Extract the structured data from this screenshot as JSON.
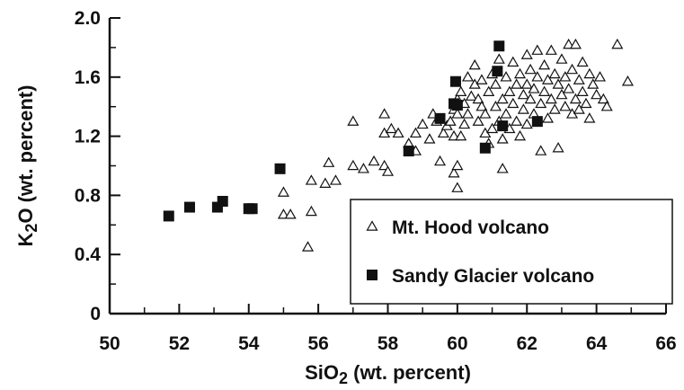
{
  "chart_data": {
    "type": "scatter",
    "xlabel": "SiO2 (wt. percent)",
    "ylabel": "K2O (wt. percent)",
    "xlim": [
      50,
      66
    ],
    "ylim": [
      0,
      2.0
    ],
    "x_ticks": [
      "50",
      "52",
      "54",
      "56",
      "58",
      "60",
      "62",
      "64",
      "66"
    ],
    "y_ticks": [
      "0",
      "0.4",
      "0.8",
      "1.2",
      "1.6",
      "2.0"
    ],
    "grid": false,
    "legend_position": "bottom-right",
    "series": [
      {
        "name": "Mt. Hood volcano",
        "marker": "open-triangle",
        "color": "#111111",
        "points": [
          [
            55.0,
            0.82
          ],
          [
            55.0,
            0.67
          ],
          [
            55.2,
            0.67
          ],
          [
            55.7,
            0.45
          ],
          [
            55.8,
            0.69
          ],
          [
            55.8,
            0.9
          ],
          [
            56.2,
            0.88
          ],
          [
            56.3,
            1.02
          ],
          [
            56.5,
            0.9
          ],
          [
            57.0,
            1.3
          ],
          [
            57.0,
            1.0
          ],
          [
            57.3,
            0.98
          ],
          [
            57.6,
            1.03
          ],
          [
            57.9,
            1.35
          ],
          [
            57.9,
            1.22
          ],
          [
            57.9,
            1.0
          ],
          [
            58.0,
            0.96
          ],
          [
            58.1,
            1.25
          ],
          [
            58.3,
            1.22
          ],
          [
            58.6,
            1.15
          ],
          [
            58.8,
            1.1
          ],
          [
            58.8,
            1.22
          ],
          [
            59.0,
            1.28
          ],
          [
            59.2,
            1.18
          ],
          [
            59.3,
            1.35
          ],
          [
            59.4,
            1.3
          ],
          [
            59.5,
            1.03
          ],
          [
            59.6,
            1.22
          ],
          [
            59.7,
            1.27
          ],
          [
            59.8,
            1.3
          ],
          [
            59.9,
            1.38
          ],
          [
            59.9,
            1.2
          ],
          [
            59.9,
            0.95
          ],
          [
            60.0,
            1.45
          ],
          [
            60.0,
            1.35
          ],
          [
            60.0,
            1.0
          ],
          [
            60.0,
            0.85
          ],
          [
            60.1,
            1.2
          ],
          [
            60.1,
            1.5
          ],
          [
            60.2,
            1.28
          ],
          [
            60.2,
            1.42
          ],
          [
            60.3,
            1.6
          ],
          [
            60.3,
            1.35
          ],
          [
            60.4,
            1.47
          ],
          [
            60.5,
            1.55
          ],
          [
            60.5,
            1.68
          ],
          [
            60.6,
            1.3
          ],
          [
            60.6,
            1.45
          ],
          [
            60.7,
            1.4
          ],
          [
            60.7,
            1.58
          ],
          [
            60.8,
            1.22
          ],
          [
            60.8,
            1.35
          ],
          [
            60.9,
            1.5
          ],
          [
            60.9,
            1.15
          ],
          [
            61.0,
            1.62
          ],
          [
            61.0,
            1.25
          ],
          [
            61.1,
            1.4
          ],
          [
            61.1,
            1.55
          ],
          [
            61.2,
            1.3
          ],
          [
            61.2,
            1.72
          ],
          [
            61.3,
            1.45
          ],
          [
            61.3,
            1.18
          ],
          [
            61.3,
            0.98
          ],
          [
            61.4,
            1.6
          ],
          [
            61.4,
            1.35
          ],
          [
            61.5,
            1.5
          ],
          [
            61.5,
            1.25
          ],
          [
            61.6,
            1.7
          ],
          [
            61.6,
            1.42
          ],
          [
            61.7,
            1.55
          ],
          [
            61.7,
            1.3
          ],
          [
            61.8,
            1.62
          ],
          [
            61.8,
            1.2
          ],
          [
            61.9,
            1.48
          ],
          [
            61.9,
            1.38
          ],
          [
            62.0,
            1.75
          ],
          [
            62.0,
            1.55
          ],
          [
            62.0,
            1.28
          ],
          [
            62.1,
            1.45
          ],
          [
            62.1,
            1.65
          ],
          [
            62.2,
            1.35
          ],
          [
            62.2,
            1.52
          ],
          [
            62.3,
            1.78
          ],
          [
            62.3,
            1.6
          ],
          [
            62.4,
            1.42
          ],
          [
            62.4,
            1.1
          ],
          [
            62.5,
            1.68
          ],
          [
            62.5,
            1.5
          ],
          [
            62.6,
            1.32
          ],
          [
            62.6,
            1.58
          ],
          [
            62.7,
            1.78
          ],
          [
            62.7,
            1.45
          ],
          [
            62.8,
            1.62
          ],
          [
            62.8,
            1.38
          ],
          [
            62.9,
            1.55
          ],
          [
            62.9,
            1.12
          ],
          [
            63.0,
            1.72
          ],
          [
            63.0,
            1.48
          ],
          [
            63.1,
            1.4
          ],
          [
            63.1,
            1.6
          ],
          [
            63.2,
            1.82
          ],
          [
            63.2,
            1.52
          ],
          [
            63.3,
            1.35
          ],
          [
            63.3,
            1.65
          ],
          [
            63.4,
            1.82
          ],
          [
            63.4,
            1.45
          ],
          [
            63.5,
            1.58
          ],
          [
            63.5,
            1.38
          ],
          [
            63.6,
            1.7
          ],
          [
            63.6,
            1.5
          ],
          [
            63.7,
            1.42
          ],
          [
            63.8,
            1.62
          ],
          [
            63.8,
            1.32
          ],
          [
            63.9,
            1.55
          ],
          [
            64.0,
            1.48
          ],
          [
            64.1,
            1.6
          ],
          [
            64.2,
            1.45
          ],
          [
            64.3,
            1.4
          ],
          [
            64.6,
            1.82
          ],
          [
            64.9,
            1.57
          ]
        ]
      },
      {
        "name": "Sandy Glacier volcano",
        "marker": "filled-square",
        "color": "#111111",
        "points": [
          [
            51.7,
            0.66
          ],
          [
            52.3,
            0.72
          ],
          [
            53.1,
            0.72
          ],
          [
            53.25,
            0.76
          ],
          [
            54.0,
            0.71
          ],
          [
            54.1,
            0.71
          ],
          [
            54.9,
            0.98
          ],
          [
            58.6,
            1.1
          ],
          [
            59.5,
            1.32
          ],
          [
            59.9,
            1.42
          ],
          [
            59.95,
            1.57
          ],
          [
            60.0,
            1.41
          ],
          [
            60.8,
            1.12
          ],
          [
            61.15,
            1.64
          ],
          [
            61.2,
            1.81
          ],
          [
            61.3,
            1.27
          ],
          [
            62.3,
            1.3
          ]
        ]
      }
    ]
  }
}
